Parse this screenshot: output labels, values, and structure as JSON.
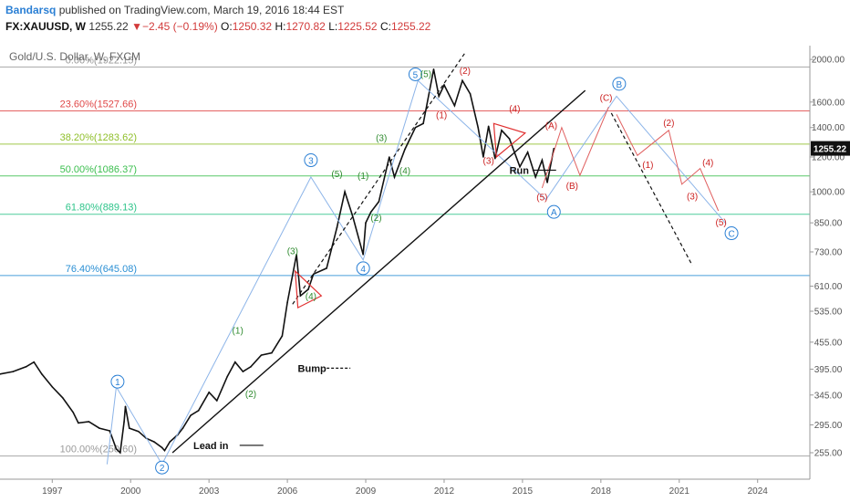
{
  "header": {
    "author": "Bandarsq",
    "published": "published on TradingView.com, March 19, 2016 18:44 EST",
    "symbol": "FX:XAUUSD, W",
    "last": "1255.22",
    "change": "−2.45 (−0.19%)",
    "open_label": "O:",
    "open": "1250.32",
    "high_label": "H:",
    "high": "1270.82",
    "low_label": "L:",
    "low": "1225.52",
    "close_label": "C:",
    "close": "1255.22"
  },
  "chart_data": {
    "type": "line",
    "title": "Gold/U.S. Dollar, W, FXCM",
    "scale": "log",
    "xlim": [
      1995.0,
      2026.0
    ],
    "ylim": [
      222,
      2150
    ],
    "x_ticks": [
      {
        "x": 1997,
        "label": "1997"
      },
      {
        "x": 2000,
        "label": "2000"
      },
      {
        "x": 2003,
        "label": "2003"
      },
      {
        "x": 2006,
        "label": "2006"
      },
      {
        "x": 2009,
        "label": "2009"
      },
      {
        "x": 2012,
        "label": "2012"
      },
      {
        "x": 2015,
        "label": "2015"
      },
      {
        "x": 2018,
        "label": "2018"
      },
      {
        "x": 2021,
        "label": "2021"
      },
      {
        "x": 2024,
        "label": "2024"
      }
    ],
    "y_ticks": [
      2000,
      1600,
      1400,
      1200,
      1000,
      850,
      730,
      610,
      535,
      455,
      395,
      345,
      295,
      255
    ],
    "y_tick_labels": [
      "2000.00",
      "1600.00",
      "1400.00",
      "1200.00",
      "1000.00",
      "850.00",
      "730.00",
      "610.00",
      "535.00",
      "455.00",
      "395.00",
      "345.00",
      "295.00",
      "255.00"
    ],
    "last_price": {
      "value": 1255.22,
      "label": "1255.22"
    },
    "series": [
      {
        "values": [
          [
            1995.0,
            385
          ],
          [
            1995.5,
            390
          ],
          [
            1996.0,
            400
          ],
          [
            1996.3,
            410
          ],
          [
            1996.6,
            385
          ],
          [
            1997.0,
            360
          ],
          [
            1997.4,
            340
          ],
          [
            1997.8,
            315
          ],
          [
            1998.0,
            298
          ],
          [
            1998.4,
            300
          ],
          [
            1998.8,
            290
          ],
          [
            1999.2,
            286
          ],
          [
            1999.45,
            260
          ],
          [
            1999.6,
            255
          ],
          [
            1999.75,
            300
          ],
          [
            1999.8,
            325
          ],
          [
            1999.95,
            290
          ],
          [
            2000.3,
            285
          ],
          [
            2000.6,
            275
          ],
          [
            2000.9,
            270
          ],
          [
            2001.2,
            262
          ],
          [
            2001.3,
            258
          ],
          [
            2001.5,
            270
          ],
          [
            2001.8,
            280
          ],
          [
            2002.0,
            290
          ],
          [
            2002.3,
            310
          ],
          [
            2002.6,
            318
          ],
          [
            2003.0,
            350
          ],
          [
            2003.3,
            335
          ],
          [
            2003.7,
            380
          ],
          [
            2004.0,
            410
          ],
          [
            2004.3,
            390
          ],
          [
            2004.6,
            400
          ],
          [
            2005.0,
            425
          ],
          [
            2005.4,
            430
          ],
          [
            2005.8,
            470
          ],
          [
            2006.0,
            560
          ],
          [
            2006.35,
            720
          ],
          [
            2006.5,
            580
          ],
          [
            2006.8,
            600
          ],
          [
            2007.0,
            650
          ],
          [
            2007.5,
            670
          ],
          [
            2007.9,
            830
          ],
          [
            2008.2,
            1000
          ],
          [
            2008.5,
            880
          ],
          [
            2008.9,
            720
          ],
          [
            2009.0,
            850
          ],
          [
            2009.2,
            900
          ],
          [
            2009.5,
            950
          ],
          [
            2009.9,
            1200
          ],
          [
            2010.1,
            1080
          ],
          [
            2010.5,
            1250
          ],
          [
            2010.9,
            1400
          ],
          [
            2011.2,
            1430
          ],
          [
            2011.6,
            1900
          ],
          [
            2011.8,
            1650
          ],
          [
            2012.0,
            1750
          ],
          [
            2012.4,
            1570
          ],
          [
            2012.7,
            1790
          ],
          [
            2013.0,
            1670
          ],
          [
            2013.3,
            1400
          ],
          [
            2013.5,
            1200
          ],
          [
            2013.7,
            1410
          ],
          [
            2013.95,
            1190
          ],
          [
            2014.2,
            1380
          ],
          [
            2014.5,
            1320
          ],
          [
            2014.9,
            1140
          ],
          [
            2015.2,
            1230
          ],
          [
            2015.5,
            1080
          ],
          [
            2015.75,
            1180
          ],
          [
            2015.95,
            1050
          ],
          [
            2016.2,
            1255
          ]
        ]
      }
    ],
    "fib_levels": [
      {
        "label": "0.00%(1922.15)",
        "value": 1922.15,
        "color": "#9a9a9a"
      },
      {
        "label": "23.60%(1527.66)",
        "value": 1527.66,
        "color": "#e04848"
      },
      {
        "label": "38.20%(1283.62)",
        "value": 1283.62,
        "color": "#8fbf2a"
      },
      {
        "label": "50.00%(1086.37)",
        "value": 1086.37,
        "color": "#3bbf4e"
      },
      {
        "label": "61.80%(889.13)",
        "value": 889.13,
        "color": "#2ec48a"
      },
      {
        "label": "76.40%(645.08)",
        "value": 645.08,
        "color": "#2a8fd4"
      },
      {
        "label": "100.00%(250.60)",
        "value": 250.6,
        "color": "#9a9a9a"
      }
    ],
    "blue_path": [
      [
        1999.1,
        240
      ],
      [
        1999.45,
        360
      ],
      [
        2001.2,
        240
      ],
      [
        2006.9,
        1080
      ],
      [
        2008.9,
        700
      ],
      [
        2011.0,
        1790
      ],
      [
        2015.9,
        960
      ],
      [
        2018.6,
        1650
      ],
      [
        2022.8,
        845
      ]
    ],
    "red_path_1": [
      [
        2015.75,
        1020
      ],
      [
        2016.5,
        1400
      ],
      [
        2017.2,
        1090
      ],
      [
        2018.3,
        1560
      ]
    ],
    "red_path_2": [
      [
        2018.6,
        1500
      ],
      [
        2019.4,
        1210
      ],
      [
        2020.6,
        1380
      ],
      [
        2021.1,
        1040
      ],
      [
        2021.8,
        1130
      ],
      [
        2022.5,
        905
      ]
    ],
    "black_dashed_1": [
      [
        2006.2,
        555
      ],
      [
        2012.8,
        2070
      ]
    ],
    "black_dashed_2": [
      [
        2018.4,
        1510
      ],
      [
        2021.5,
        680
      ]
    ],
    "solid_trendline": [
      [
        2001.6,
        255
      ],
      [
        2017.4,
        1700
      ]
    ],
    "triangles": [
      {
        "points": [
          [
            2006.3,
            660
          ],
          [
            2007.3,
            580
          ],
          [
            2006.4,
            545
          ]
        ]
      },
      {
        "points": [
          [
            2013.9,
            1430
          ],
          [
            2015.1,
            1360
          ],
          [
            2014.0,
            1200
          ]
        ]
      }
    ],
    "wave_labels": [
      {
        "text": "1",
        "x": 1999.5,
        "y": 370,
        "style": "circle-blue"
      },
      {
        "text": "2",
        "x": 2001.2,
        "y": 236,
        "style": "circle-blue"
      },
      {
        "text": "3",
        "x": 2006.9,
        "y": 1180,
        "style": "circle-blue"
      },
      {
        "text": "4",
        "x": 2008.9,
        "y": 670,
        "style": "circle-blue"
      },
      {
        "text": "5",
        "x": 2010.9,
        "y": 1850,
        "style": "circle-blue"
      },
      {
        "text": "A",
        "x": 2016.2,
        "y": 900,
        "style": "circle-blue"
      },
      {
        "text": "B",
        "x": 2018.7,
        "y": 1760,
        "style": "circle-blue"
      },
      {
        "text": "C",
        "x": 2023.0,
        "y": 805,
        "style": "circle-blue"
      },
      {
        "text": "(1)",
        "x": 2004.1,
        "y": 485,
        "style": "green"
      },
      {
        "text": "(2)",
        "x": 2004.6,
        "y": 348,
        "style": "green"
      },
      {
        "text": "(3)",
        "x": 2006.2,
        "y": 735,
        "style": "green"
      },
      {
        "text": "(4)",
        "x": 2006.9,
        "y": 580,
        "style": "green"
      },
      {
        "text": "(5)",
        "x": 2007.9,
        "y": 1100,
        "style": "green"
      },
      {
        "text": "(1)",
        "x": 2008.9,
        "y": 1090,
        "style": "green"
      },
      {
        "text": "(2)",
        "x": 2009.4,
        "y": 875,
        "style": "green"
      },
      {
        "text": "(3)",
        "x": 2009.6,
        "y": 1330,
        "style": "green"
      },
      {
        "text": "(4)",
        "x": 2010.5,
        "y": 1120,
        "style": "green"
      },
      {
        "text": "(5)",
        "x": 2011.3,
        "y": 1860,
        "style": "green"
      },
      {
        "text": "(1)",
        "x": 2011.9,
        "y": 1500,
        "style": "red"
      },
      {
        "text": "(2)",
        "x": 2012.8,
        "y": 1890,
        "style": "red"
      },
      {
        "text": "(3)",
        "x": 2013.7,
        "y": 1180,
        "style": "red"
      },
      {
        "text": "(4)",
        "x": 2014.7,
        "y": 1550,
        "style": "red"
      },
      {
        "text": "(5)",
        "x": 2015.75,
        "y": 975,
        "style": "red"
      },
      {
        "text": "(A)",
        "x": 2016.1,
        "y": 1420,
        "style": "red"
      },
      {
        "text": "(B)",
        "x": 2016.9,
        "y": 1035,
        "style": "red"
      },
      {
        "text": "(C)",
        "x": 2018.2,
        "y": 1640,
        "style": "red"
      },
      {
        "text": "(1)",
        "x": 2019.8,
        "y": 1155,
        "style": "red"
      },
      {
        "text": "(2)",
        "x": 2020.6,
        "y": 1440,
        "style": "red"
      },
      {
        "text": "(3)",
        "x": 2021.5,
        "y": 980,
        "style": "red"
      },
      {
        "text": "(4)",
        "x": 2022.1,
        "y": 1170,
        "style": "red"
      },
      {
        "text": "(5)",
        "x": 2022.6,
        "y": 855,
        "style": "red"
      }
    ],
    "annotations": [
      {
        "text": "Lead in",
        "x": 2002.4,
        "y": 265,
        "dash": false
      },
      {
        "text": "Bump",
        "x": 2006.4,
        "y": 397,
        "dash": true
      },
      {
        "text": "Run",
        "x": 2014.5,
        "y": 1120,
        "dash": false
      }
    ]
  }
}
